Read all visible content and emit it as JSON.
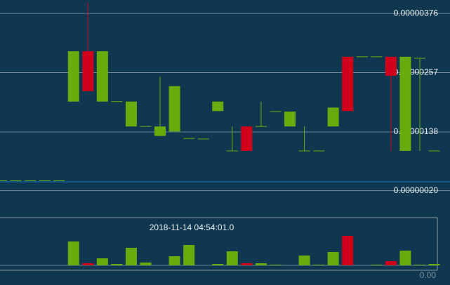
{
  "chart_data": {
    "type": "candlestick",
    "time_label": "2018-11-14 04:54:01.0",
    "up_color": "#66ad0b",
    "down_color": "#d0021b",
    "grid": true,
    "ylim": [
      -3.4e-07,
      4.03e-06
    ],
    "yticks": [
      {
        "value": 3.76e-06,
        "label": "0.00000376"
      },
      {
        "value": 2.57e-06,
        "label": "0.00000257"
      },
      {
        "value": 1.38e-06,
        "label": "0.00000138"
      },
      {
        "value": 2e-07,
        "label": "0.00000020"
      }
    ],
    "open": [
      4e-07,
      4e-07,
      4e-07,
      4e-07,
      4e-07,
      1.99e-06,
      3e-06,
      1.99e-06,
      1.99e-06,
      1.49e-06,
      1.49e-06,
      1.3e-06,
      1.39e-06,
      1.25e-06,
      1.24e-06,
      1.8e-06,
      1e-06,
      1.49e-06,
      1.49e-06,
      1.79e-06,
      1.49e-06,
      1e-06,
      1e-06,
      1.49e-06,
      2.89e-06,
      2.89e-06,
      2.89e-06,
      2.89e-06,
      1e-06,
      2.86e-06,
      1e-06
    ],
    "high": [
      4e-07,
      4e-07,
      4e-07,
      4e-07,
      4e-07,
      3e-06,
      3.98e-06,
      3e-06,
      1.99e-06,
      1.99e-06,
      1.49e-06,
      2.49e-06,
      2.3e-06,
      1.25e-06,
      1.24e-06,
      1.99e-06,
      1.49e-06,
      1.49e-06,
      1.99e-06,
      1.79e-06,
      1.79e-06,
      1.49e-06,
      1e-06,
      1.87e-06,
      2.89e-06,
      2.89e-06,
      2.89e-06,
      2.89e-06,
      2.89e-06,
      2.86e-06,
      1e-06
    ],
    "low": [
      4e-07,
      4e-07,
      4e-07,
      4e-07,
      4e-07,
      1.99e-06,
      2.2e-06,
      1.99e-06,
      1.99e-06,
      1.49e-06,
      1.49e-06,
      1.3e-06,
      1.39e-06,
      1.25e-06,
      1.24e-06,
      1.8e-06,
      1e-06,
      1e-06,
      1.49e-06,
      1.79e-06,
      1.49e-06,
      1e-06,
      1e-06,
      1.49e-06,
      1.8e-06,
      2.89e-06,
      2.89e-06,
      1e-06,
      1e-06,
      1e-06,
      1e-06
    ],
    "close": [
      4e-07,
      4e-07,
      4e-07,
      4e-07,
      4e-07,
      3e-06,
      2.2e-06,
      3e-06,
      1.99e-06,
      1.99e-06,
      1.49e-06,
      1.49e-06,
      2.3e-06,
      1.25e-06,
      1.24e-06,
      1.99e-06,
      1e-06,
      1e-06,
      1.49e-06,
      1.79e-06,
      1.79e-06,
      1e-06,
      1e-06,
      1.87e-06,
      1.8e-06,
      2.89e-06,
      2.89e-06,
      2.51e-06,
      2.89e-06,
      2.86e-06,
      1e-06
    ],
    "volume": [
      0,
      0,
      0,
      0,
      0,
      34,
      3,
      10,
      2,
      25,
      4,
      0,
      13,
      29,
      0,
      2,
      20,
      3,
      3,
      1,
      0,
      14,
      1,
      19,
      42,
      0,
      1,
      6,
      21,
      1,
      2
    ],
    "volume_ylim": [
      0,
      42
    ],
    "volume_ticks": [
      {
        "value": 0,
        "label": "0.00"
      }
    ]
  }
}
